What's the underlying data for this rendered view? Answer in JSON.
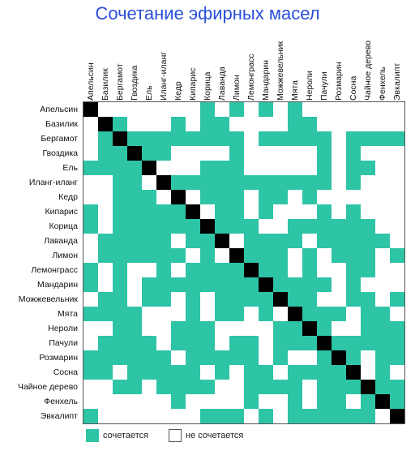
{
  "title": "Сочетание эфирных масел",
  "oils": [
    "Апельсин",
    "Базилик",
    "Бергамот",
    "Гвоздика",
    "Ель",
    "Иланг-иланг",
    "Кедр",
    "Кипарис",
    "Корица",
    "Лаванда",
    "Лимон",
    "Лемонграсс",
    "Мандарин",
    "Можжевельник",
    "Мята",
    "Нероли",
    "Пачули",
    "Розмарин",
    "Сосна",
    "Чайное дерево",
    "Фенхель",
    "Эвкалипт"
  ],
  "colors": {
    "combines": "#2ec4a6",
    "not_combines": "#ffffff",
    "self": "#000000",
    "title": "#2a4fd8"
  },
  "matrix": [
    "X000000010101010000000",
    "0X10001011000011000000",
    "01X1111111101111101111",
    "011X110000100000101000",
    "1111X00011100000101100",
    "00110X1111111111101000",
    "001110X011101101000000",
    "1011111X01101000101000",
    "10111111X1110011111100",
    "011111011X011110111110",
    "0111111010X11101011101",
    "10100101111X1101001100",
    "101011111111X111101000",
    "0110110101111X11001101",
    "11110001011010X1110110",
    "001100111000011X100111",
    "0111101110110111X11111",
    "11111101111101001X1011",
    "110111110101101111X010",
    "0011011110011110111X11",
    "00000010000100101101X1",
    "100000001110101111110X"
  ],
  "legend": {
    "combines": "сочетается",
    "not_combines": "не сочетается"
  }
}
